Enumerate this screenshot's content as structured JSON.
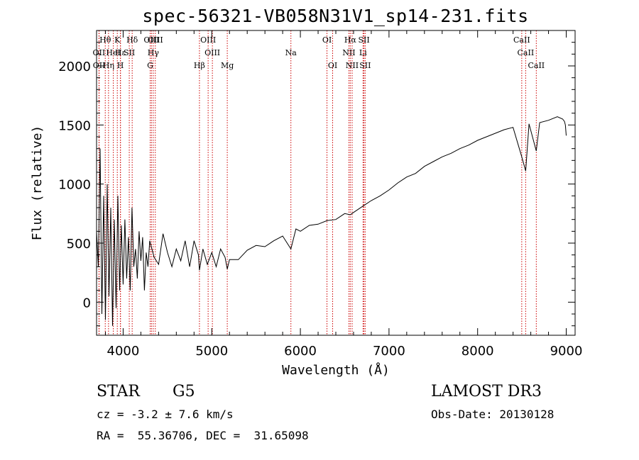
{
  "chart_data": {
    "type": "line",
    "title": "spec-56321-VB058N31V1_sp14-231.fits",
    "xlabel": "Wavelength (Å)",
    "ylabel": "Flux (relative)",
    "xlim": [
      3700,
      9100
    ],
    "ylim": [
      -280,
      2300
    ],
    "xticks": [
      4000,
      5000,
      6000,
      7000,
      8000,
      9000
    ],
    "yticks": [
      0,
      500,
      1000,
      1500,
      2000
    ],
    "xminor_step": 200,
    "yminor_step": 100,
    "series": [
      {
        "name": "flux",
        "x": [
          3700,
          3720,
          3740,
          3760,
          3780,
          3800,
          3820,
          3840,
          3860,
          3880,
          3900,
          3920,
          3940,
          3960,
          3980,
          4000,
          4020,
          4040,
          4060,
          4080,
          4100,
          4120,
          4140,
          4160,
          4180,
          4200,
          4220,
          4240,
          4260,
          4280,
          4300,
          4350,
          4400,
          4450,
          4500,
          4550,
          4600,
          4650,
          4700,
          4750,
          4800,
          4850,
          4861,
          4900,
          4950,
          5000,
          5050,
          5100,
          5150,
          5175,
          5200,
          5300,
          5400,
          5500,
          5600,
          5700,
          5800,
          5893,
          5950,
          6000,
          6100,
          6200,
          6300,
          6400,
          6500,
          6563,
          6600,
          6700,
          6800,
          6900,
          7000,
          7100,
          7200,
          7300,
          7400,
          7500,
          7600,
          7700,
          7800,
          7900,
          8000,
          8100,
          8200,
          8300,
          8400,
          8498,
          8542,
          8580,
          8662,
          8700,
          8800,
          8900,
          8960,
          8980,
          8990,
          9000
        ],
        "y": [
          600,
          300,
          1300,
          -100,
          900,
          -150,
          1000,
          50,
          800,
          -200,
          700,
          -50,
          900,
          100,
          650,
          150,
          700,
          200,
          550,
          100,
          800,
          300,
          450,
          200,
          600,
          350,
          550,
          100,
          420,
          300,
          520,
          380,
          320,
          580,
          420,
          300,
          450,
          350,
          520,
          300,
          520,
          400,
          270,
          450,
          320,
          420,
          300,
          450,
          380,
          280,
          360,
          360,
          440,
          480,
          470,
          520,
          560,
          450,
          620,
          600,
          650,
          660,
          690,
          700,
          750,
          740,
          760,
          810,
          860,
          900,
          950,
          1010,
          1060,
          1090,
          1150,
          1190,
          1230,
          1260,
          1300,
          1330,
          1370,
          1400,
          1430,
          1460,
          1480,
          1230,
          1110,
          1510,
          1280,
          1520,
          1540,
          1570,
          1550,
          1530,
          1500,
          1410
        ]
      }
    ],
    "lines": [
      {
        "label": "Hθ",
        "x": 3798,
        "row": 0
      },
      {
        "label": "OII",
        "x": 3727,
        "row": 1
      },
      {
        "label": "OII",
        "x": 3729,
        "row": 2
      },
      {
        "label": "K",
        "x": 3934,
        "row": 0
      },
      {
        "label": "H",
        "x": 3969,
        "row": 2
      },
      {
        "label": "Hε",
        "x": 3970,
        "row": 1
      },
      {
        "label": "Hη",
        "x": 3835,
        "row": 2
      },
      {
        "label": "HeI",
        "x": 3889,
        "row": 1
      },
      {
        "label": "SII",
        "x": 4069,
        "row": 1
      },
      {
        "label": "Hδ",
        "x": 4102,
        "row": 0
      },
      {
        "label": "OIII",
        "x": 4320,
        "row": 0
      },
      {
        "label": "Hγ",
        "x": 4340,
        "row": 1
      },
      {
        "label": "G",
        "x": 4305,
        "row": 2
      },
      {
        "label": "OIII",
        "x": 4363,
        "row": 0
      },
      {
        "label": "Hβ",
        "x": 4861,
        "row": 2
      },
      {
        "label": "OIII",
        "x": 4959,
        "row": 0
      },
      {
        "label": "OIII",
        "x": 5007,
        "row": 1
      },
      {
        "label": "Mg",
        "x": 5175,
        "row": 2
      },
      {
        "label": "Na",
        "x": 5893,
        "row": 1
      },
      {
        "label": "OI",
        "x": 6300,
        "row": 0
      },
      {
        "label": "OI",
        "x": 6364,
        "row": 2
      },
      {
        "label": "Hα",
        "x": 6563,
        "row": 0
      },
      {
        "label": "NII",
        "x": 6548,
        "row": 1
      },
      {
        "label": "NII",
        "x": 6584,
        "row": 2
      },
      {
        "label": "SII",
        "x": 6717,
        "row": 0
      },
      {
        "label": "Li",
        "x": 6707,
        "row": 1
      },
      {
        "label": "SII",
        "x": 6731,
        "row": 2
      },
      {
        "label": "CaII",
        "x": 8498,
        "row": 0
      },
      {
        "label": "CaII",
        "x": 8542,
        "row": 1
      },
      {
        "label": "CaII",
        "x": 8662,
        "row": 2
      }
    ]
  },
  "info": {
    "object_class": "STAR",
    "subclass": "G5",
    "survey": "LAMOST DR3",
    "redshift": "cz = -3.2 ± 7.6 km/s",
    "obs_date": "Obs-Date: 20130128",
    "coords": "RA =  55.36706, DEC =  31.65098"
  },
  "colors": {
    "line": "#000000",
    "marker": "#cc0000"
  }
}
